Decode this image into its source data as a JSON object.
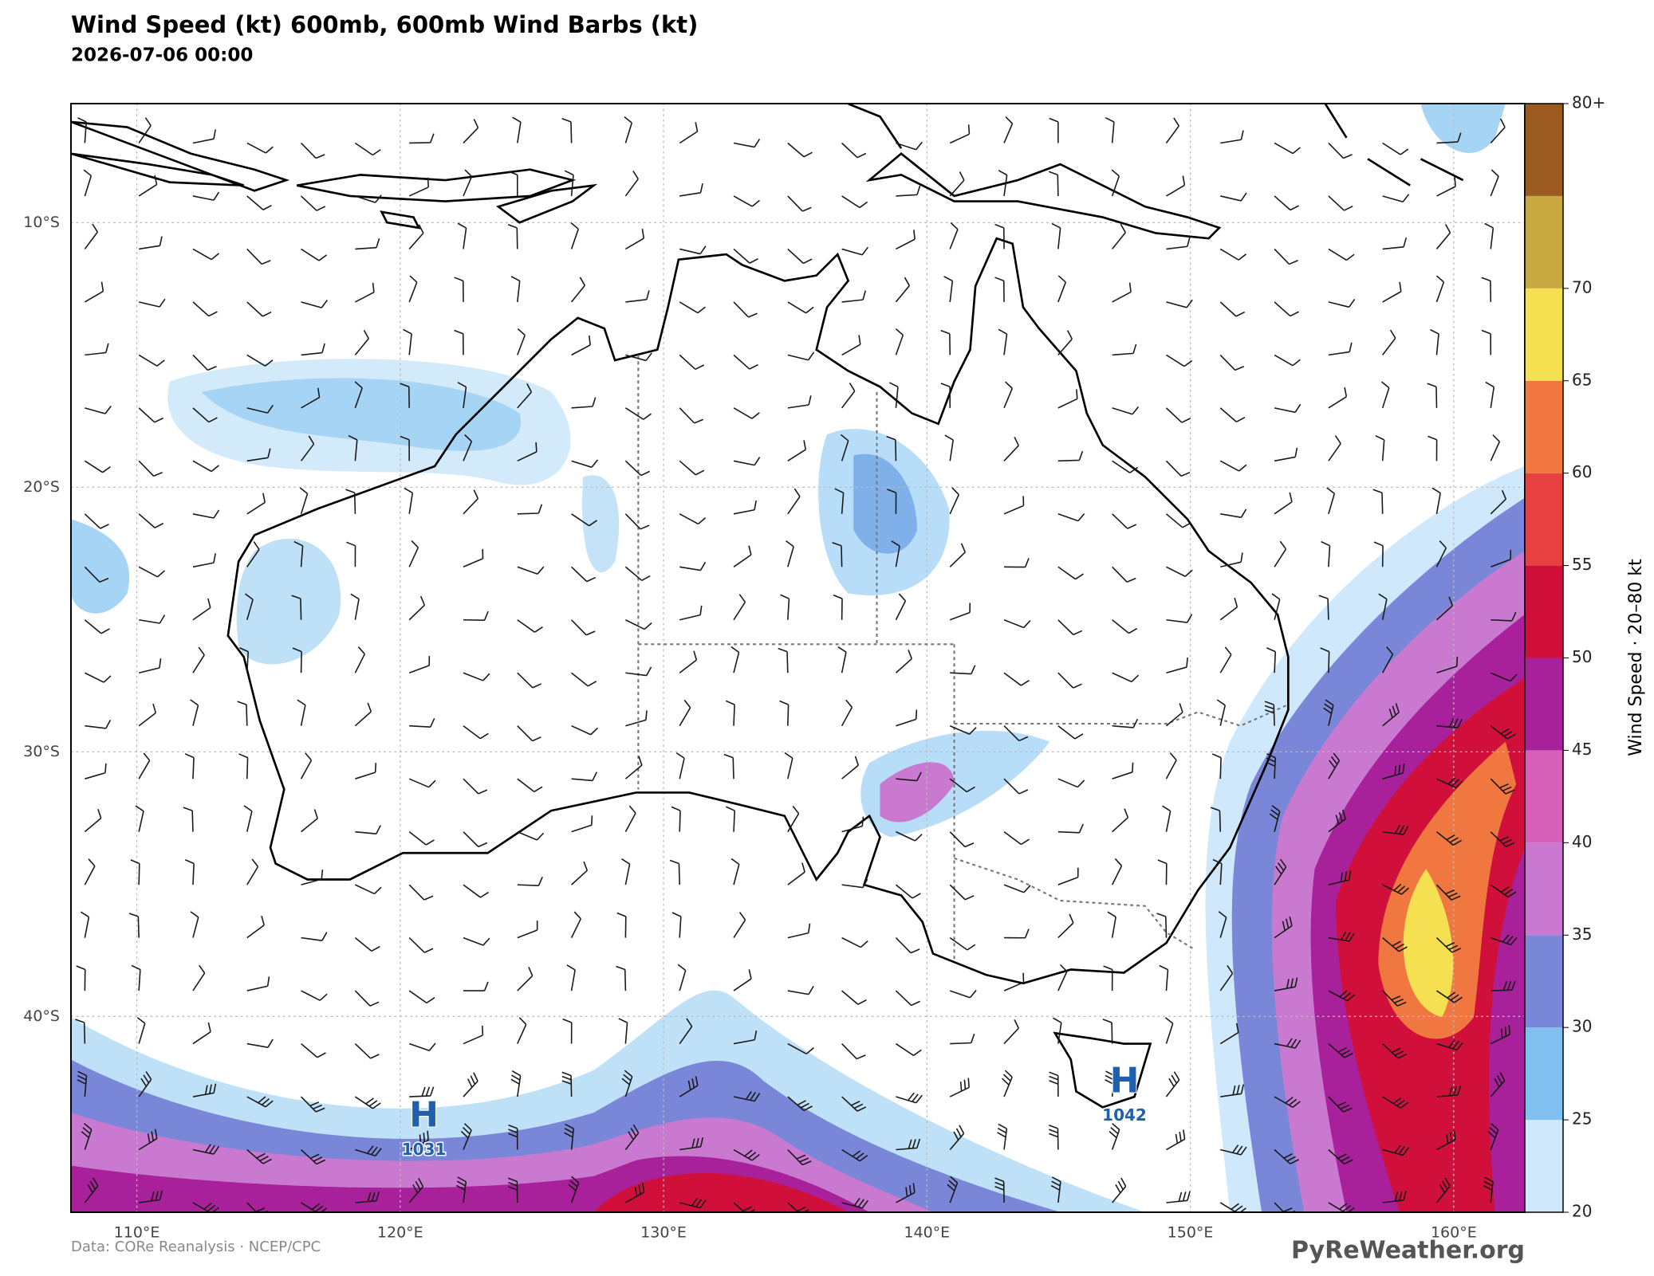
{
  "header": {
    "title": "Wind Speed (kt)  600mb, 600mb Wind Barbs (kt)",
    "subtitle": "2026-07-06 00:00"
  },
  "map": {
    "lonlim": [
      107.5,
      162.7
    ],
    "latlim": [
      -5.5,
      -47.4
    ],
    "lonticks": [
      {
        "value": 110,
        "label": "110°E"
      },
      {
        "value": 120,
        "label": "120°E"
      },
      {
        "value": 130,
        "label": "130°E"
      },
      {
        "value": 140,
        "label": "140°E"
      },
      {
        "value": 150,
        "label": "150°E"
      },
      {
        "value": 160,
        "label": "160°E"
      }
    ],
    "latticks": [
      {
        "value": -10,
        "label": "10°S"
      },
      {
        "value": -20,
        "label": "20°S"
      },
      {
        "value": -30,
        "label": "30°S"
      },
      {
        "value": -40,
        "label": "40°S"
      }
    ],
    "highs": [
      {
        "label": "H",
        "pressure": 1031,
        "lon": 120.9,
        "lat": -43.8
      },
      {
        "label": "H",
        "pressure": 1042,
        "lon": 147.5,
        "lat": -42.5
      }
    ]
  },
  "colorbar": {
    "label": "Wind Speed · 20–80 kt",
    "lim": [
      20,
      80
    ],
    "ticks": [
      20,
      25,
      30,
      35,
      40,
      45,
      50,
      55,
      60,
      65,
      70,
      {
        "value": 80,
        "label": "80+"
      }
    ],
    "colors": [
      "#cfe8fb",
      "#7fc0f0",
      "#7a86d8",
      "#c97ad0",
      "#d560b8",
      "#a8209a",
      "#d0103a",
      "#e84040",
      "#f07840",
      "#f4e050",
      "#c8a840",
      "#9a5a20"
    ]
  },
  "footer": {
    "source": "Data: CORe Reanalysis  ·  NCEP/CPC",
    "brand": "PyReWeather.org"
  }
}
